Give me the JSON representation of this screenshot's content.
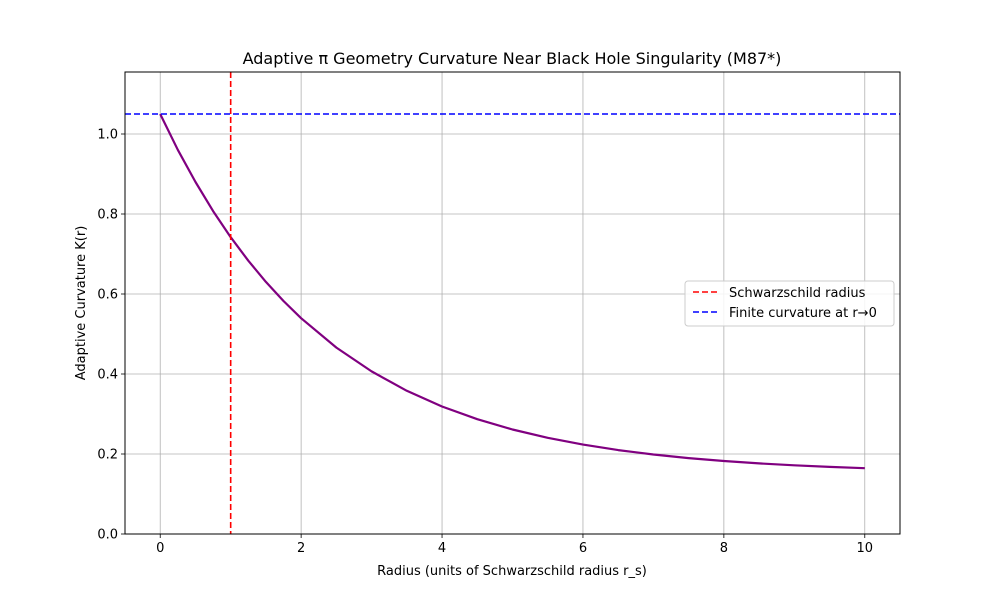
{
  "chart_data": {
    "type": "line",
    "title": "Adaptive π Geometry Curvature Near Black Hole Singularity (M87*)",
    "xlabel": "Radius (units of Schwarzschild radius r_s)",
    "ylabel": "Adaptive Curvature K(r)",
    "xlim": [
      -0.5,
      10.5
    ],
    "ylim": [
      0.0,
      1.155
    ],
    "xticks": [
      0,
      2,
      4,
      6,
      8,
      10
    ],
    "xtick_labels": [
      "0",
      "2",
      "4",
      "6",
      "8",
      "10"
    ],
    "yticks": [
      0.0,
      0.2,
      0.4,
      0.6,
      0.8,
      1.0
    ],
    "ytick_labels": [
      "0.0",
      "0.2",
      "0.4",
      "0.6",
      "0.8",
      "1.0"
    ],
    "grid": true,
    "legend_position": "center-right",
    "series": [
      {
        "kind": "curve",
        "color": "#800080",
        "x": [
          0,
          0.25,
          0.5,
          0.75,
          1,
          1.25,
          1.5,
          1.75,
          2,
          2.5,
          3,
          3.5,
          4,
          4.5,
          5,
          5.5,
          6,
          6.5,
          7,
          7.5,
          8,
          8.5,
          9,
          9.5,
          10
        ],
        "y": [
          1.05,
          0.9605,
          0.8799,
          0.8073,
          0.742,
          0.6832,
          0.6302,
          0.5825,
          0.5396,
          0.466,
          0.4064,
          0.358,
          0.3188,
          0.287,
          0.2613,
          0.2404,
          0.2235,
          0.2098,
          0.1987,
          0.1897,
          0.1824,
          0.1765,
          0.1717,
          0.1678,
          0.1646
        ]
      },
      {
        "kind": "vline",
        "name": "Schwarzschild radius",
        "color": "#ff0000",
        "x": 1
      },
      {
        "kind": "hline",
        "name": "Finite curvature at r→0",
        "color": "#0000ff",
        "y": 1.05
      }
    ]
  }
}
